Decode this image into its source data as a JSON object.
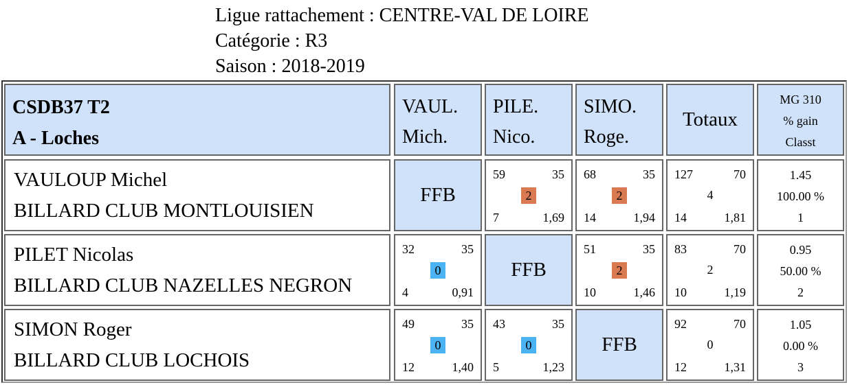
{
  "header": {
    "ligue": "Ligue rattachement : CENTRE-VAL DE LOIRE",
    "categorie": "Catégorie : R3",
    "saison": "Saison : 2018-2019"
  },
  "table": {
    "title_line1": "CSDB37 T2",
    "title_line2": "A - Loches",
    "columns": [
      {
        "line1": "VAUL.",
        "line2": "Mich."
      },
      {
        "line1": "PILE.",
        "line2": "Nico."
      },
      {
        "line1": "SIMO.",
        "line2": "Roge."
      }
    ],
    "totals_label": "Totaux",
    "mg_label": "MG 310",
    "gain_label": "% gain",
    "classt_label": "Classt",
    "self_label": "FFB",
    "rows": [
      {
        "name": "VAULOUP Michel",
        "club": "BILLARD CLUB MONTLOUISIEN",
        "matches": [
          null,
          {
            "points": "59",
            "target": "35",
            "result": "2",
            "innings": "7",
            "avg": "1,69"
          },
          {
            "points": "68",
            "target": "35",
            "result": "2",
            "innings": "14",
            "avg": "1,94"
          }
        ],
        "totals": {
          "points": "127",
          "target": "70",
          "result": "4",
          "innings": "14",
          "avg": "1,81"
        },
        "mg": "1.45",
        "gain": "100.00 %",
        "rank": "1"
      },
      {
        "name": "PILET Nicolas",
        "club": "BILLARD CLUB NAZELLES NEGRON",
        "matches": [
          {
            "points": "32",
            "target": "35",
            "result": "0",
            "innings": "4",
            "avg": "0,91"
          },
          null,
          {
            "points": "51",
            "target": "35",
            "result": "2",
            "innings": "10",
            "avg": "1,46"
          }
        ],
        "totals": {
          "points": "83",
          "target": "70",
          "result": "2",
          "innings": "10",
          "avg": "1,19"
        },
        "mg": "0.95",
        "gain": "50.00 %",
        "rank": "2"
      },
      {
        "name": "SIMON Roger",
        "club": "BILLARD CLUB LOCHOIS",
        "matches": [
          {
            "points": "49",
            "target": "35",
            "result": "0",
            "innings": "12",
            "avg": "1,40"
          },
          {
            "points": "43",
            "target": "35",
            "result": "0",
            "innings": "5",
            "avg": "1,23"
          },
          null
        ],
        "totals": {
          "points": "92",
          "target": "70",
          "result": "0",
          "innings": "12",
          "avg": "1,31"
        },
        "mg": "1.05",
        "gain": "0.00 %",
        "rank": "3"
      }
    ]
  },
  "colors": {
    "header_bg": "#d0e2f9",
    "win_badge": "#d97a53",
    "loss_badge": "#4cb3f3"
  }
}
